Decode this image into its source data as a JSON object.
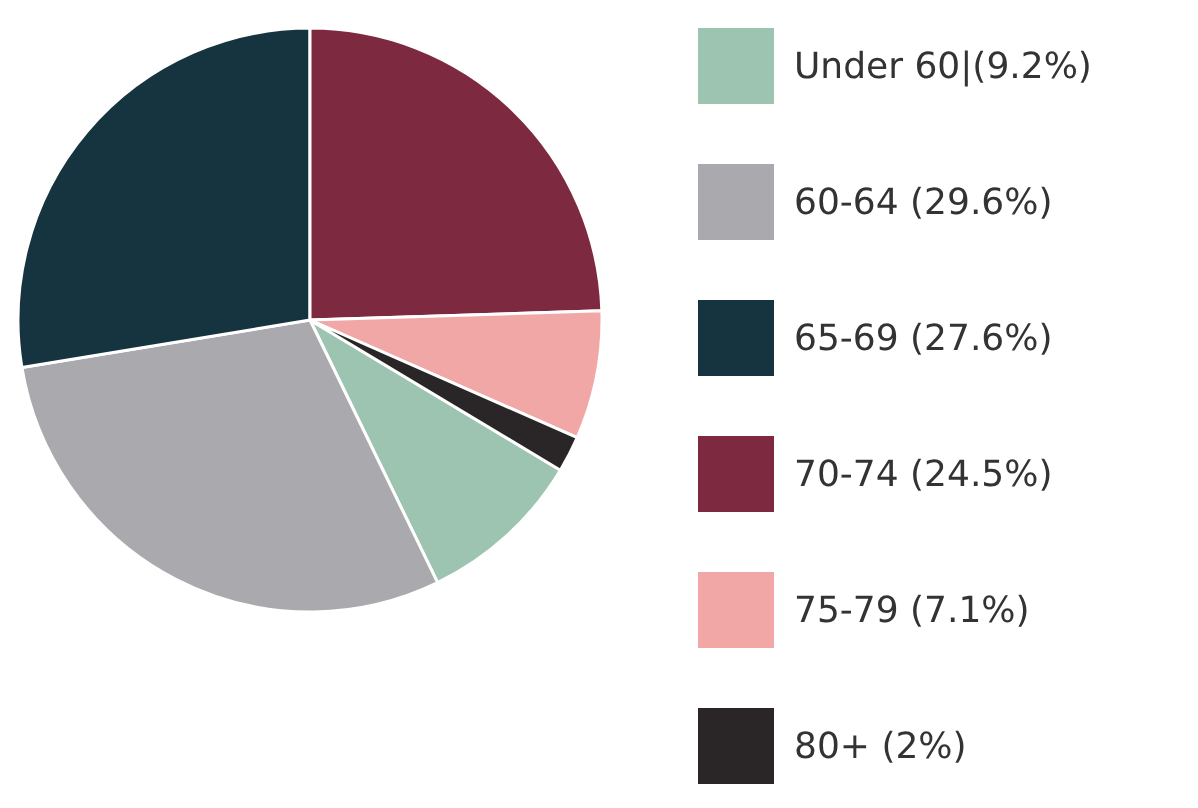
{
  "chart_data": {
    "type": "pie",
    "categories": [
      "Under 60|(9.2%)",
      "60-64 (29.6%)",
      "65-69 (27.6%)",
      "70-74 (24.5%)",
      "75-79 (7.1%)",
      "80+ (2%)"
    ],
    "values": [
      9.2,
      29.6,
      27.6,
      24.5,
      7.1,
      2
    ],
    "colors": [
      "#9cc4b0",
      "#aaaaae",
      "#163440",
      "#7d2a40",
      "#f2a7a7",
      "#2a2628"
    ],
    "legend": "right"
  }
}
